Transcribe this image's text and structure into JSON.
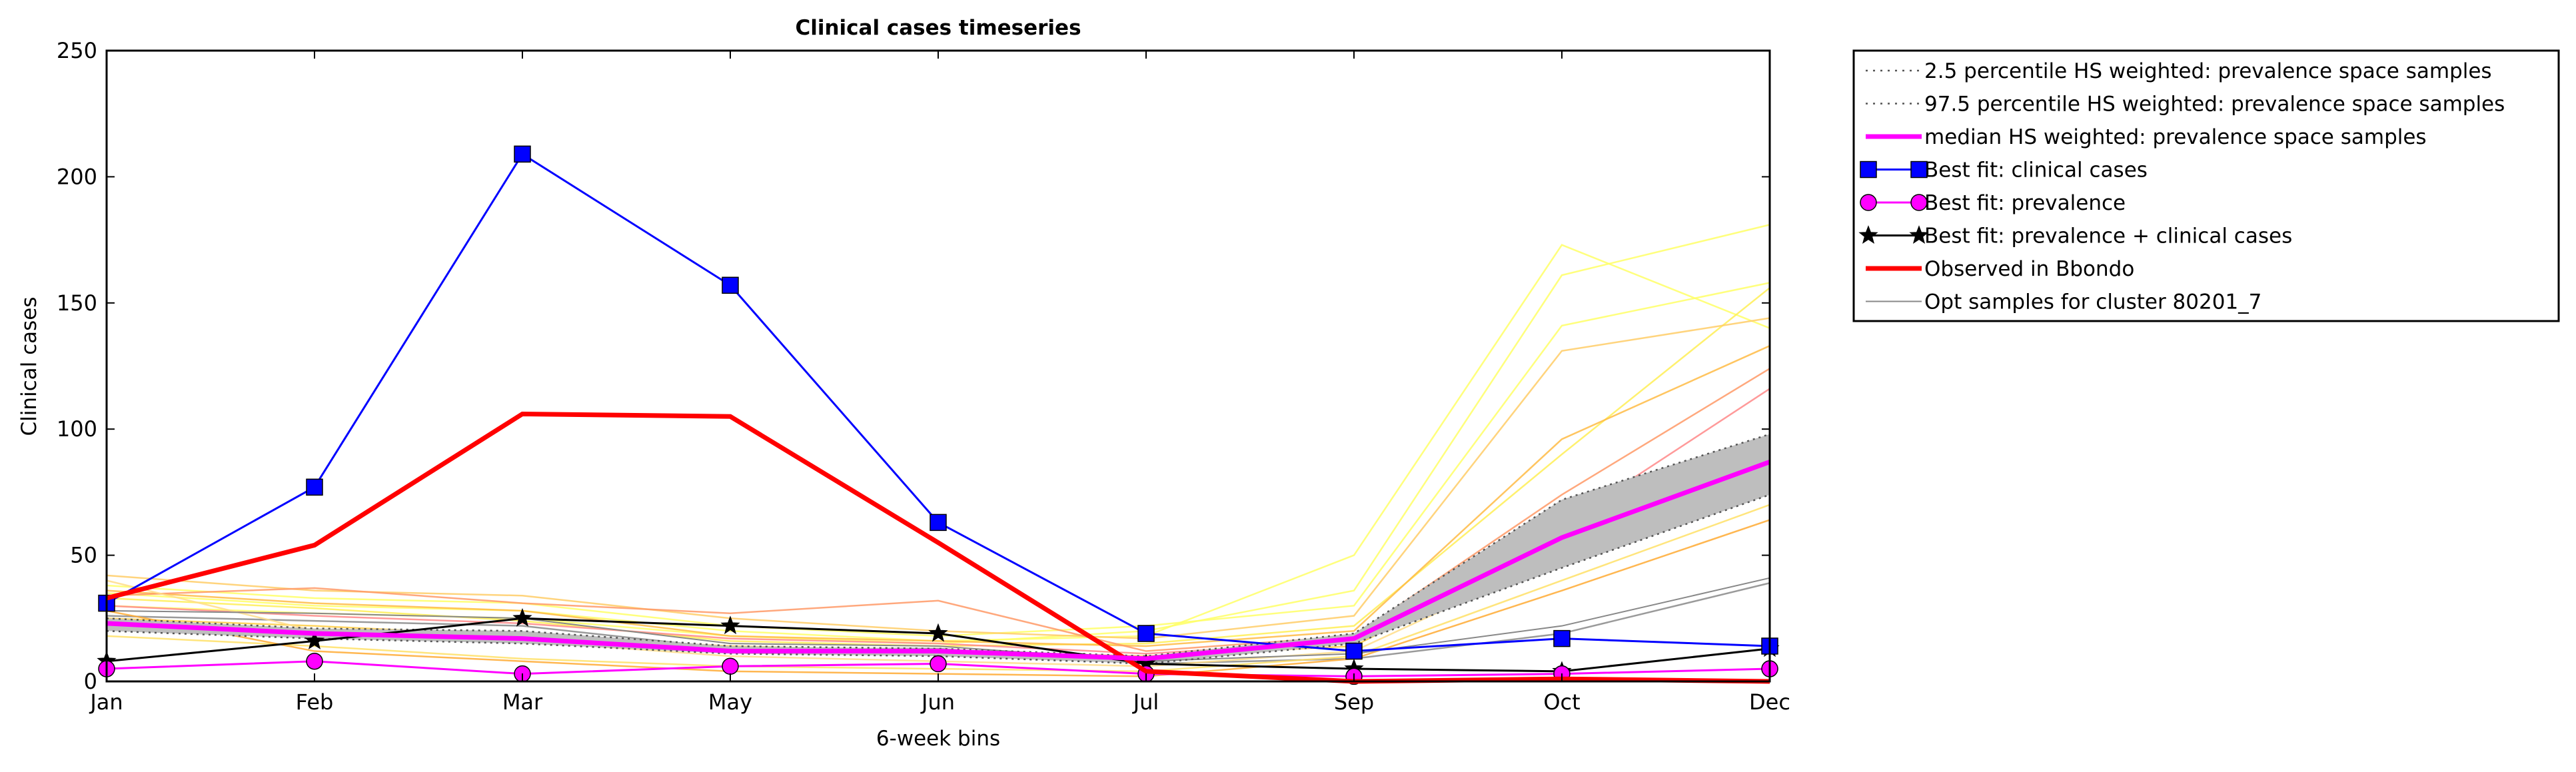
{
  "chart_data": {
    "type": "line",
    "title": "Clinical cases timeseries",
    "xlabel": "6-week bins",
    "ylabel": "Clinical cases",
    "categories": [
      "Jan",
      "Feb",
      "Mar",
      "May",
      "Jun",
      "Jul",
      "Sep",
      "Oct",
      "Dec"
    ],
    "ylim": [
      0,
      250
    ],
    "yticks": [
      0,
      50,
      100,
      150,
      200,
      250
    ],
    "grid": false,
    "legend_placement": "outside-top-right",
    "band": {
      "lower": [
        20,
        17,
        15,
        11,
        10,
        7,
        15,
        45,
        74
      ],
      "upper": [
        25,
        21,
        20,
        14,
        13,
        10,
        19,
        72,
        98
      ],
      "color": "#bebebe"
    },
    "series": [
      {
        "name": "2.5 percentile HS weighted: prevalence space samples",
        "style": "dotted",
        "color": "#555555",
        "values": [
          20,
          17,
          15,
          11,
          10,
          7,
          15,
          45,
          74
        ]
      },
      {
        "name": "97.5 percentile HS weighted: prevalence space samples",
        "style": "dotted",
        "color": "#555555",
        "values": [
          25,
          21,
          20,
          14,
          13,
          10,
          19,
          72,
          98
        ]
      },
      {
        "name": "median HS weighted: prevalence space samples",
        "style": "solid",
        "color": "#ff00ff",
        "values": [
          23,
          19,
          17,
          12,
          12,
          9,
          17,
          57,
          87
        ]
      },
      {
        "name": "Best fit: clinical cases",
        "style": "solid",
        "marker": "square",
        "color": "#0000ff",
        "values": [
          31,
          77,
          209,
          157,
          63,
          19,
          12,
          17,
          14
        ]
      },
      {
        "name": "Best fit: prevalence",
        "style": "solid",
        "marker": "circle",
        "color": "#ff00ff",
        "values": [
          5,
          8,
          3,
          6,
          7,
          3,
          2,
          3,
          5
        ]
      },
      {
        "name": "Best fit: prevalence + clinical cases",
        "style": "solid",
        "marker": "star",
        "color": "#000000",
        "values": [
          8,
          16,
          25,
          22,
          19,
          7,
          5,
          4,
          13
        ]
      },
      {
        "name": "Observed in Bbondo",
        "style": "solid",
        "color": "#ff0000",
        "values": [
          33,
          54,
          106,
          105,
          55,
          4,
          0,
          1,
          0
        ]
      },
      {
        "name": "Opt samples for cluster 80201_7",
        "style": "solid",
        "color": "#888888",
        "values": [
          28,
          27,
          25,
          15,
          14,
          8,
          11,
          22,
          41
        ]
      }
    ],
    "extra_lines": [
      {
        "color": "#888888",
        "values": [
          26,
          24,
          22,
          13,
          13,
          7,
          9,
          19,
          39
        ]
      },
      {
        "color": "#ffff66",
        "values": [
          35,
          30,
          28,
          20,
          16,
          18,
          50,
          173,
          140
        ]
      },
      {
        "color": "#ffff66",
        "values": [
          30,
          27,
          25,
          18,
          15,
          20,
          36,
          161,
          181
        ]
      },
      {
        "color": "#ffff66",
        "values": [
          38,
          33,
          31,
          22,
          18,
          22,
          30,
          141,
          158
        ]
      },
      {
        "color": "#ffee55",
        "values": [
          33,
          29,
          24,
          16,
          14,
          15,
          22,
          90,
          156
        ]
      },
      {
        "color": "#ffcc66",
        "values": [
          42,
          36,
          34,
          25,
          20,
          17,
          26,
          131,
          144
        ]
      },
      {
        "color": "#ffbb44",
        "values": [
          36,
          31,
          28,
          18,
          16,
          14,
          20,
          96,
          133
        ]
      },
      {
        "color": "#ff9966",
        "values": [
          34,
          37,
          31,
          27,
          32,
          12,
          18,
          74,
          124
        ]
      },
      {
        "color": "#ff8888",
        "values": [
          30,
          26,
          23,
          17,
          15,
          11,
          16,
          62,
          116
        ]
      },
      {
        "color": "#ffcc44",
        "values": [
          25,
          22,
          18,
          14,
          12,
          10,
          14,
          56,
          92
        ]
      },
      {
        "color": "#ffdd88",
        "values": [
          40,
          20,
          16,
          10,
          8,
          6,
          12,
          50,
          82
        ]
      },
      {
        "color": "#ffe066",
        "values": [
          18,
          14,
          9,
          6,
          5,
          4,
          10,
          40,
          70
        ]
      },
      {
        "color": "#ffaa33",
        "values": [
          28,
          12,
          8,
          4,
          3,
          2,
          9,
          36,
          64
        ]
      }
    ]
  }
}
